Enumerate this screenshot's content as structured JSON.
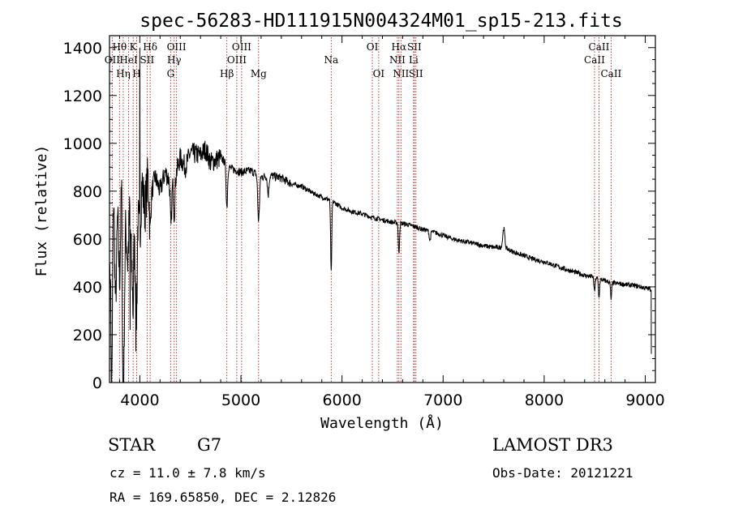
{
  "chart_data": {
    "type": "line",
    "title": "spec-56283-HD111915N004324M01_sp15-213.fits",
    "xlabel": "Wavelength (Å)",
    "ylabel": "Flux (relative)",
    "xlim": [
      3700,
      9100
    ],
    "ylim": [
      0,
      1450
    ],
    "xticks": [
      4000,
      5000,
      6000,
      7000,
      8000,
      9000
    ],
    "yticks": [
      0,
      200,
      400,
      600,
      800,
      1000,
      1200,
      1400
    ],
    "spectrum_anchors": [
      [
        3700,
        350
      ],
      [
        3710,
        680
      ],
      [
        3720,
        200
      ],
      [
        3740,
        820
      ],
      [
        3760,
        300
      ],
      [
        3780,
        700
      ],
      [
        3800,
        420
      ],
      [
        3820,
        860
      ],
      [
        3840,
        250
      ],
      [
        3860,
        650
      ],
      [
        3880,
        500
      ],
      [
        3900,
        720
      ],
      [
        3920,
        480
      ],
      [
        3940,
        660
      ],
      [
        3960,
        420
      ],
      [
        3980,
        700
      ],
      [
        4000,
        600
      ],
      [
        4020,
        840
      ],
      [
        4050,
        720
      ],
      [
        4080,
        860
      ],
      [
        4100,
        760
      ],
      [
        4150,
        860
      ],
      [
        4200,
        800
      ],
      [
        4250,
        880
      ],
      [
        4300,
        840
      ],
      [
        4350,
        860
      ],
      [
        4400,
        940
      ],
      [
        4450,
        900
      ],
      [
        4500,
        960
      ],
      [
        4600,
        950
      ],
      [
        4650,
        975
      ],
      [
        4700,
        920
      ],
      [
        4800,
        940
      ],
      [
        4900,
        895
      ],
      [
        5000,
        880
      ],
      [
        5100,
        885
      ],
      [
        5200,
        860
      ],
      [
        5300,
        865
      ],
      [
        5400,
        855
      ],
      [
        5500,
        830
      ],
      [
        5600,
        820
      ],
      [
        5700,
        795
      ],
      [
        5800,
        775
      ],
      [
        5900,
        760
      ],
      [
        6000,
        730
      ],
      [
        6100,
        715
      ],
      [
        6200,
        705
      ],
      [
        6300,
        690
      ],
      [
        6400,
        680
      ],
      [
        6500,
        670
      ],
      [
        6600,
        665
      ],
      [
        6700,
        655
      ],
      [
        6800,
        640
      ],
      [
        6900,
        630
      ],
      [
        7000,
        615
      ],
      [
        7100,
        600
      ],
      [
        7200,
        590
      ],
      [
        7300,
        582
      ],
      [
        7400,
        572
      ],
      [
        7500,
        565
      ],
      [
        7600,
        565
      ],
      [
        7700,
        545
      ],
      [
        7800,
        530
      ],
      [
        7900,
        515
      ],
      [
        8000,
        505
      ],
      [
        8100,
        490
      ],
      [
        8200,
        475
      ],
      [
        8300,
        462
      ],
      [
        8400,
        448
      ],
      [
        8500,
        440
      ],
      [
        8600,
        425
      ],
      [
        8700,
        415
      ],
      [
        8800,
        410
      ],
      [
        8900,
        405
      ],
      [
        9000,
        395
      ],
      [
        9050,
        390
      ]
    ],
    "absorption_features": [
      {
        "wavelength": 3720,
        "depth": 350,
        "width": 12
      },
      {
        "wavelength": 3835,
        "depth": 600,
        "width": 10
      },
      {
        "wavelength": 3934,
        "depth": 300,
        "width": 8
      },
      {
        "wavelength": 3969,
        "depth": 250,
        "width": 8
      },
      {
        "wavelength": 4102,
        "depth": 120,
        "width": 10
      },
      {
        "wavelength": 4308,
        "depth": 200,
        "width": 10
      },
      {
        "wavelength": 4340,
        "depth": 150,
        "width": 10
      },
      {
        "wavelength": 4861,
        "depth": 180,
        "width": 10
      },
      {
        "wavelength": 5175,
        "depth": 190,
        "width": 12
      },
      {
        "wavelength": 5270,
        "depth": 80,
        "width": 10
      },
      {
        "wavelength": 5893,
        "depth": 300,
        "width": 8
      },
      {
        "wavelength": 6563,
        "depth": 130,
        "width": 8
      },
      {
        "wavelength": 6870,
        "depth": 40,
        "width": 10
      },
      {
        "wavelength": 7600,
        "depth": -80,
        "width": 14
      },
      {
        "wavelength": 8498,
        "depth": 60,
        "width": 8
      },
      {
        "wavelength": 8542,
        "depth": 80,
        "width": 8
      },
      {
        "wavelength": 8662,
        "depth": 70,
        "width": 8
      }
    ],
    "spikes": [
      {
        "wavelength": 4000,
        "flux": 1400
      },
      {
        "wavelength": 3905,
        "flux": 220
      },
      {
        "wavelength": 3960,
        "flux": 130
      }
    ],
    "line_markers": [
      {
        "wavelength": 3727,
        "label": "OII",
        "row": 2
      },
      {
        "wavelength": 3799,
        "label": "Hθ",
        "row": 1
      },
      {
        "wavelength": 3836,
        "label": "Hη",
        "row": 3
      },
      {
        "wavelength": 3889,
        "label": "HeI",
        "row": 2
      },
      {
        "wavelength": 3934,
        "label": "K",
        "row": 1
      },
      {
        "wavelength": 3969,
        "label": "H",
        "row": 3
      },
      {
        "wavelength": 4072,
        "label": "SII",
        "row": 2
      },
      {
        "wavelength": 4102,
        "label": "Hδ",
        "row": 1
      },
      {
        "wavelength": 4305,
        "label": "G",
        "row": 3
      },
      {
        "wavelength": 4340,
        "label": "Hγ",
        "row": 2
      },
      {
        "wavelength": 4363,
        "label": "OIII",
        "row": 1
      },
      {
        "wavelength": 4861,
        "label": "Hβ",
        "row": 3
      },
      {
        "wavelength": 4959,
        "label": "OIII",
        "row": 2
      },
      {
        "wavelength": 5007,
        "label": "OIII",
        "row": 1
      },
      {
        "wavelength": 5175,
        "label": "Mg",
        "row": 3
      },
      {
        "wavelength": 5893,
        "label": "Na",
        "row": 2
      },
      {
        "wavelength": 6300,
        "label": "OI",
        "row": 1
      },
      {
        "wavelength": 6363,
        "label": "OI",
        "row": 3
      },
      {
        "wavelength": 6548,
        "label": "NII",
        "row": 2
      },
      {
        "wavelength": 6563,
        "label": "Hα",
        "row": 1
      },
      {
        "wavelength": 6583,
        "label": "NII",
        "row": 3
      },
      {
        "wavelength": 6708,
        "label": "Li",
        "row": 2
      },
      {
        "wavelength": 6716,
        "label": "SII",
        "row": 1
      },
      {
        "wavelength": 6731,
        "label": "SII",
        "row": 3
      },
      {
        "wavelength": 8498,
        "label": "CaII",
        "row": 2
      },
      {
        "wavelength": 8542,
        "label": "CaII",
        "row": 1
      },
      {
        "wavelength": 8662,
        "label": "CaII",
        "row": 3
      }
    ],
    "marker_color": "#b22222"
  },
  "info": {
    "object_class": "STAR",
    "subclass": "G7",
    "survey": "LAMOST DR3",
    "redshift": "cz = 11.0 ± 7.8 km/s",
    "obs_date": "Obs-Date: 20121221",
    "coords": "RA = 169.65850, DEC =    2.12826"
  }
}
